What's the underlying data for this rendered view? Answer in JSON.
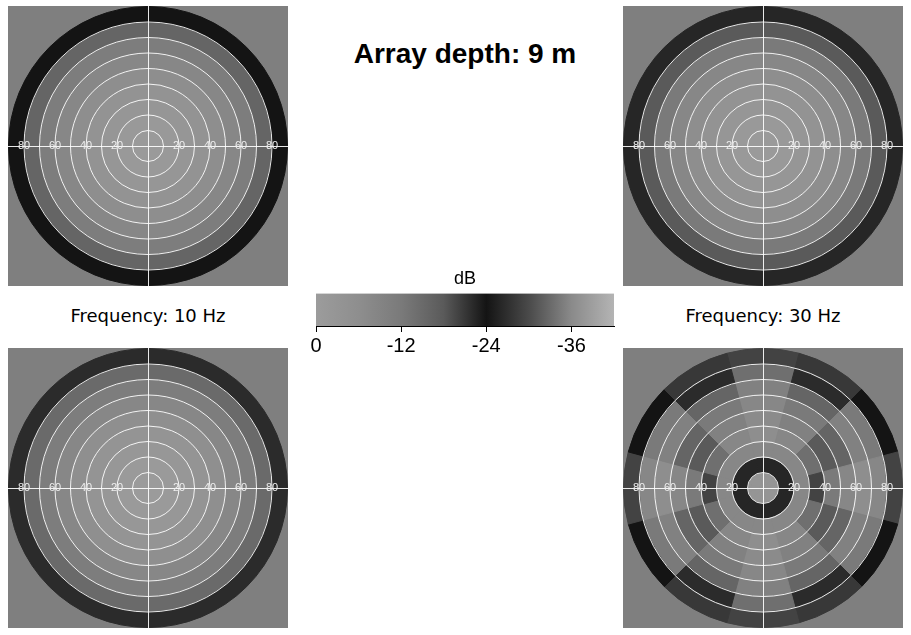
{
  "title": "Array depth: 9 m",
  "annotations": [
    "Frequency: 10 Hz",
    "Frequency: 30 Hz"
  ],
  "colorbar": {
    "title": "dB",
    "range": [
      0,
      -42
    ],
    "ticks": [
      0,
      -12,
      -24,
      -36
    ],
    "colors": [
      "#9c9c9c",
      "#8e8e8e",
      "#7a7a7a",
      "#5a5a5a",
      "#141414",
      "#4a4a4a",
      "#8a8a8a",
      "#b4b4b4"
    ]
  },
  "chart_data": [
    {
      "type": "polar_heatmap",
      "rlim": [
        0,
        90
      ],
      "rticks": [
        20,
        40,
        60,
        80
      ],
      "grid": true,
      "r_bins": [
        0,
        10,
        20,
        30,
        40,
        50,
        60,
        70,
        80,
        90
      ],
      "az_bins": [
        0,
        360
      ],
      "cells": [
        [
          -1
        ],
        [
          -1.5
        ],
        [
          -2.5
        ],
        [
          -4
        ],
        [
          -6
        ],
        [
          -8
        ],
        [
          -11
        ],
        [
          -16
        ],
        [
          -24
        ]
      ]
    },
    {
      "type": "polar_heatmap",
      "rlim": [
        0,
        90
      ],
      "rticks": [
        20,
        40,
        60,
        80
      ],
      "grid": true,
      "r_bins": [
        0,
        10,
        20,
        30,
        40,
        50,
        60,
        70,
        80,
        90
      ],
      "az_bins": [
        0,
        360
      ],
      "cells": [
        [
          -1
        ],
        [
          -1.5
        ],
        [
          -2.5
        ],
        [
          -4
        ],
        [
          -6
        ],
        [
          -8
        ],
        [
          -12
        ],
        [
          -18
        ],
        [
          -26
        ]
      ]
    },
    {
      "type": "polar_heatmap",
      "rlim": [
        0,
        90
      ],
      "rticks": [
        20,
        40,
        60,
        80
      ],
      "grid": true,
      "r_bins": [
        0,
        10,
        20,
        30,
        40,
        50,
        60,
        70,
        80,
        90
      ],
      "az_bins": [
        0,
        360
      ],
      "cells": [
        [
          -0.5
        ],
        [
          -1
        ],
        [
          -2
        ],
        [
          -3.5
        ],
        [
          -5.5
        ],
        [
          -8
        ],
        [
          -11
        ],
        [
          -15
        ],
        [
          -22
        ]
      ]
    },
    {
      "type": "polar_heatmap",
      "rlim": [
        0,
        90
      ],
      "rticks": [
        20,
        40,
        60,
        80
      ],
      "grid": true,
      "r_bins": [
        0,
        10,
        20,
        30,
        40,
        50,
        60,
        70,
        80,
        90
      ],
      "az_bins": [
        -15,
        15,
        45,
        75,
        105,
        135,
        165,
        195,
        225,
        255,
        285,
        315,
        345
      ],
      "cells": [
        [
          -3,
          -3,
          -3,
          -3,
          -3,
          -3,
          -3,
          -3,
          -3,
          -3,
          -3,
          -3
        ],
        [
          -26,
          -26,
          -26,
          -26,
          -26,
          -26,
          -26,
          -26,
          -26,
          -26,
          -26,
          -26
        ],
        [
          -8,
          -8,
          -8,
          -8,
          -8,
          -8,
          -8,
          -8,
          -8,
          -8,
          -8,
          -8
        ],
        [
          -6,
          -8,
          -14,
          -20,
          -14,
          -8,
          -6,
          -8,
          -14,
          -20,
          -14,
          -8
        ],
        [
          -7,
          -10,
          -18,
          -12,
          -18,
          -10,
          -7,
          -10,
          -18,
          -12,
          -18,
          -10
        ],
        [
          -8,
          -12,
          -16,
          -8,
          -16,
          -12,
          -8,
          -12,
          -16,
          -8,
          -16,
          -12
        ],
        [
          -10,
          -16,
          -10,
          -6,
          -10,
          -16,
          -10,
          -16,
          -10,
          -6,
          -10,
          -16
        ],
        [
          -14,
          -22,
          -12,
          -8,
          -12,
          -22,
          -14,
          -22,
          -12,
          -8,
          -12,
          -22
        ],
        [
          -20,
          -28,
          -24,
          -20,
          -24,
          -28,
          -20,
          -28,
          -24,
          -20,
          -24,
          -28
        ]
      ]
    }
  ]
}
